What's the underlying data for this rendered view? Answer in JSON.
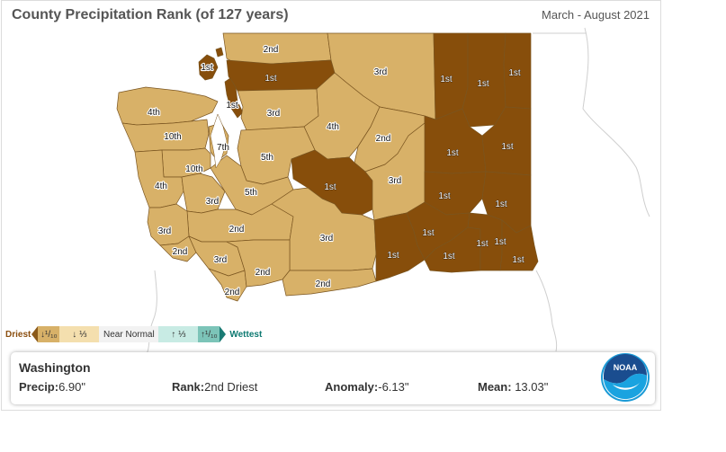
{
  "header": {
    "title": "County Precipitation Rank (of 127 years)",
    "period": "March - August 2021"
  },
  "legend": {
    "driest_label": "Driest",
    "wettest_label": "Wettest",
    "categories": [
      {
        "label": "↓¹/₁₀",
        "color": "#d8b168"
      },
      {
        "label": "↓ ⅓",
        "color": "#f4dfae"
      },
      {
        "label": "Near Normal",
        "color": "#f2f2f2"
      },
      {
        "label": "↑ ⅓",
        "color": "#c8ebe4"
      },
      {
        "label": "↑¹/₁₀",
        "color": "#7cc4b8"
      }
    ]
  },
  "colors": {
    "record_driest": "#874e0b",
    "driest_tenth": "#d8b168",
    "county_border": "#5a3a10",
    "ocean_outline": "#cfcfcf"
  },
  "counties": [
    {
      "rank": "1st",
      "category": "record"
    },
    {
      "rank": "2nd",
      "category": "tenth"
    },
    {
      "rank": "1st",
      "category": "record"
    },
    {
      "rank": "3rd",
      "category": "tenth"
    },
    {
      "rank": "1st",
      "category": "record"
    },
    {
      "rank": "1st",
      "category": "record"
    },
    {
      "rank": "1st",
      "category": "record"
    },
    {
      "rank": "1st",
      "category": "record"
    },
    {
      "rank": "4th",
      "category": "tenth"
    },
    {
      "rank": "3rd",
      "category": "tenth"
    },
    {
      "rank": "4th",
      "category": "tenth"
    },
    {
      "rank": "2nd",
      "category": "tenth"
    },
    {
      "rank": "1st",
      "category": "record"
    },
    {
      "rank": "10th",
      "category": "tenth"
    },
    {
      "rank": "7th",
      "category": "tenth"
    },
    {
      "rank": "5th",
      "category": "tenth"
    },
    {
      "rank": "1st",
      "category": "record"
    },
    {
      "rank": "10th",
      "category": "tenth"
    },
    {
      "rank": "1st",
      "category": "record"
    },
    {
      "rank": "3rd",
      "category": "tenth"
    },
    {
      "rank": "4th",
      "category": "tenth"
    },
    {
      "rank": "3rd",
      "category": "tenth"
    },
    {
      "rank": "5th",
      "category": "tenth"
    },
    {
      "rank": "1st",
      "category": "record"
    },
    {
      "rank": "1st",
      "category": "record"
    },
    {
      "rank": "2nd",
      "category": "tenth"
    },
    {
      "rank": "3rd",
      "category": "tenth"
    },
    {
      "rank": "3rd",
      "category": "tenth"
    },
    {
      "rank": "2nd",
      "category": "tenth"
    },
    {
      "rank": "3rd",
      "category": "tenth"
    },
    {
      "rank": "1st",
      "category": "record"
    },
    {
      "rank": "1st",
      "category": "record"
    },
    {
      "rank": "1st",
      "category": "record"
    },
    {
      "rank": "1st",
      "category": "record"
    },
    {
      "rank": "1st",
      "category": "record"
    },
    {
      "rank": "2nd",
      "category": "tenth"
    },
    {
      "rank": "2nd",
      "category": "tenth"
    },
    {
      "rank": "2nd",
      "category": "tenth"
    }
  ],
  "info": {
    "state": "Washington",
    "precip_label": "Precip:",
    "precip_value": "6.90\"",
    "rank_label": "Rank:",
    "rank_value": "2nd Driest",
    "anomaly_label": "Anomaly:",
    "anomaly_value": "-6.13\"",
    "mean_label": "Mean:",
    "mean_value": "13.03\""
  },
  "logo": {
    "text": "NOAA",
    "icon": "noaa-logo-icon"
  }
}
